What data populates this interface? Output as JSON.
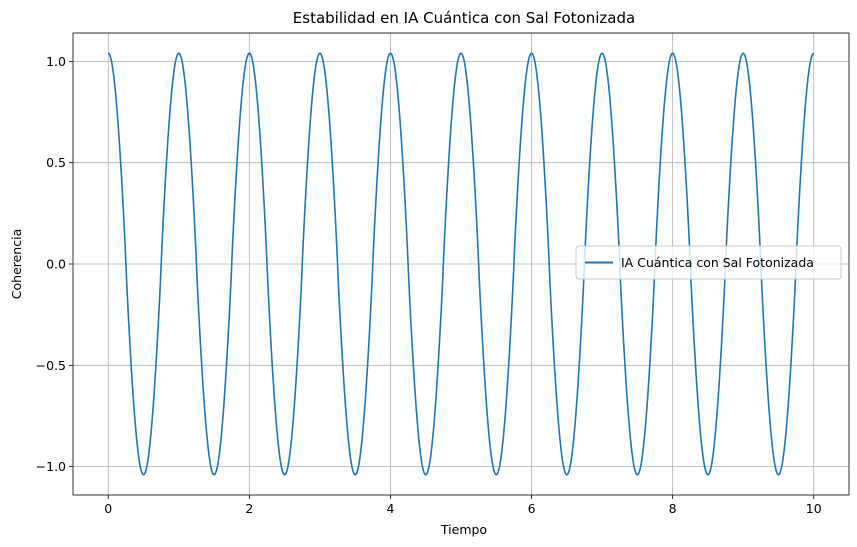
{
  "chart_data": {
    "type": "line",
    "title": "Estabilidad en IA Cuántica con Sal Fotonizada",
    "xlabel": "Tiempo",
    "ylabel": "Coherencia",
    "xlim": [
      -0.5,
      10.5
    ],
    "ylim": [
      -1.14,
      1.14
    ],
    "xticks": [
      0,
      2,
      4,
      6,
      8,
      10
    ],
    "xtick_labels": [
      "0",
      "2",
      "4",
      "6",
      "8",
      "10"
    ],
    "yticks": [
      -1.0,
      -0.5,
      0.0,
      0.5,
      1.0
    ],
    "ytick_labels": [
      "−1.0",
      "−0.5",
      "0.0",
      "0.5",
      "1.0"
    ],
    "grid": true,
    "legend_position": "center right",
    "series": [
      {
        "name": "IA Cuántica con Sal Fotonizada",
        "color": "#1f77b4",
        "function": "cos(2*pi*t) * (1 + 0.04*cos(2*pi*t*...))",
        "x": [
          0,
          0.25,
          0.5,
          0.75,
          1,
          1.25,
          1.5,
          1.75,
          2,
          2.25,
          2.5,
          2.75,
          3,
          3.25,
          3.5,
          3.75,
          4,
          4.25,
          4.5,
          4.75,
          5,
          5.25,
          5.5,
          5.75,
          6,
          6.25,
          6.5,
          6.75,
          7,
          7.25,
          7.5,
          7.75,
          8,
          8.25,
          8.5,
          8.75,
          9,
          9.25,
          9.5,
          9.75,
          10
        ],
        "y": [
          1.04,
          0,
          -1.04,
          0,
          1.04,
          0,
          -1.04,
          0,
          1.04,
          0,
          -1.04,
          0,
          1.04,
          0,
          -1.04,
          0,
          1.04,
          0,
          -1.04,
          0,
          1.04,
          0,
          -1.04,
          0,
          1.04,
          0,
          -1.04,
          0,
          1.04,
          0,
          -1.04,
          0,
          1.04,
          0,
          -1.04,
          0,
          1.04,
          0,
          -1.04,
          0,
          1.04
        ]
      }
    ]
  }
}
